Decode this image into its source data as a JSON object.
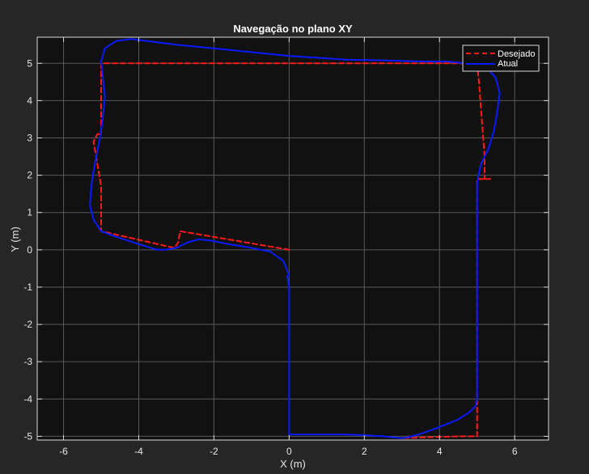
{
  "chart_data": {
    "type": "line",
    "title": "Navegação no plano XY",
    "xlabel": "X (m)",
    "ylabel": "Y (m)",
    "xlim": [
      -6.7,
      6.9
    ],
    "ylim": [
      -5.1,
      5.7
    ],
    "xticks": [
      -6,
      -4,
      -2,
      0,
      2,
      4,
      6
    ],
    "yticks": [
      -5,
      -4,
      -3,
      -2,
      -1,
      0,
      1,
      2,
      3,
      4,
      5
    ],
    "grid": true,
    "legend_position": "top-right",
    "series": [
      {
        "name": "Desejado",
        "color": "#ff1a1a",
        "style": "dashed",
        "x": [
          0,
          -2.9,
          -2.95,
          -3.05,
          -5.0,
          -5.0,
          -5.2,
          -5.1,
          -5.0,
          -5.0,
          5.0,
          5.05,
          5.2,
          5.2,
          5.35,
          5.0,
          5.0,
          4.5,
          3.0
        ],
        "y": [
          0,
          0.5,
          0.2,
          0.05,
          0.5,
          1.7,
          2.9,
          3.1,
          3.1,
          5.0,
          5.0,
          4.5,
          2.5,
          1.9,
          1.9,
          1.9,
          -5.0,
          -5.0,
          -5.05
        ]
      },
      {
        "name": "Atual",
        "color": "#0a1aff",
        "style": "solid",
        "x": [
          0,
          -0.15,
          -0.5,
          -1.0,
          -1.6,
          -2.1,
          -2.4,
          -2.7,
          -3.0,
          -3.3,
          -3.5,
          -4.0,
          -4.6,
          -5.0,
          -5.2,
          -5.3,
          -5.25,
          -5.15,
          -5.05,
          -5.0,
          -4.95,
          -4.9,
          -4.95,
          -5.0,
          -4.9,
          -4.6,
          -4.2,
          -3.0,
          -1.5,
          0,
          1.5,
          2.5,
          3.5,
          4.2,
          4.9,
          5.3,
          5.5,
          5.6,
          5.55,
          5.45,
          5.3,
          5.1,
          5.0,
          5.0,
          5.0,
          5.0,
          4.95,
          4.8,
          4.5,
          4.0,
          3.6,
          3.2,
          3.0,
          2.5,
          2.0,
          1.5,
          1.0,
          0.5,
          0,
          0,
          0,
          -0.05
        ],
        "y": [
          -0.7,
          -0.3,
          -0.05,
          0.05,
          0.15,
          0.25,
          0.28,
          0.2,
          0.05,
          0.0,
          0.0,
          0.15,
          0.35,
          0.5,
          0.8,
          1.2,
          1.8,
          2.4,
          2.9,
          3.2,
          3.6,
          4.1,
          4.6,
          5.05,
          5.4,
          5.6,
          5.65,
          5.5,
          5.35,
          5.2,
          5.1,
          5.08,
          5.05,
          5.05,
          4.98,
          4.85,
          4.6,
          4.2,
          3.8,
          3.2,
          2.7,
          2.3,
          1.8,
          0,
          -2,
          -4,
          -4.2,
          -4.35,
          -4.55,
          -4.75,
          -4.9,
          -5.02,
          -5.05,
          -5.0,
          -4.97,
          -4.95,
          -4.95,
          -4.95,
          -4.95,
          -2,
          -1,
          -0.7
        ]
      }
    ]
  }
}
